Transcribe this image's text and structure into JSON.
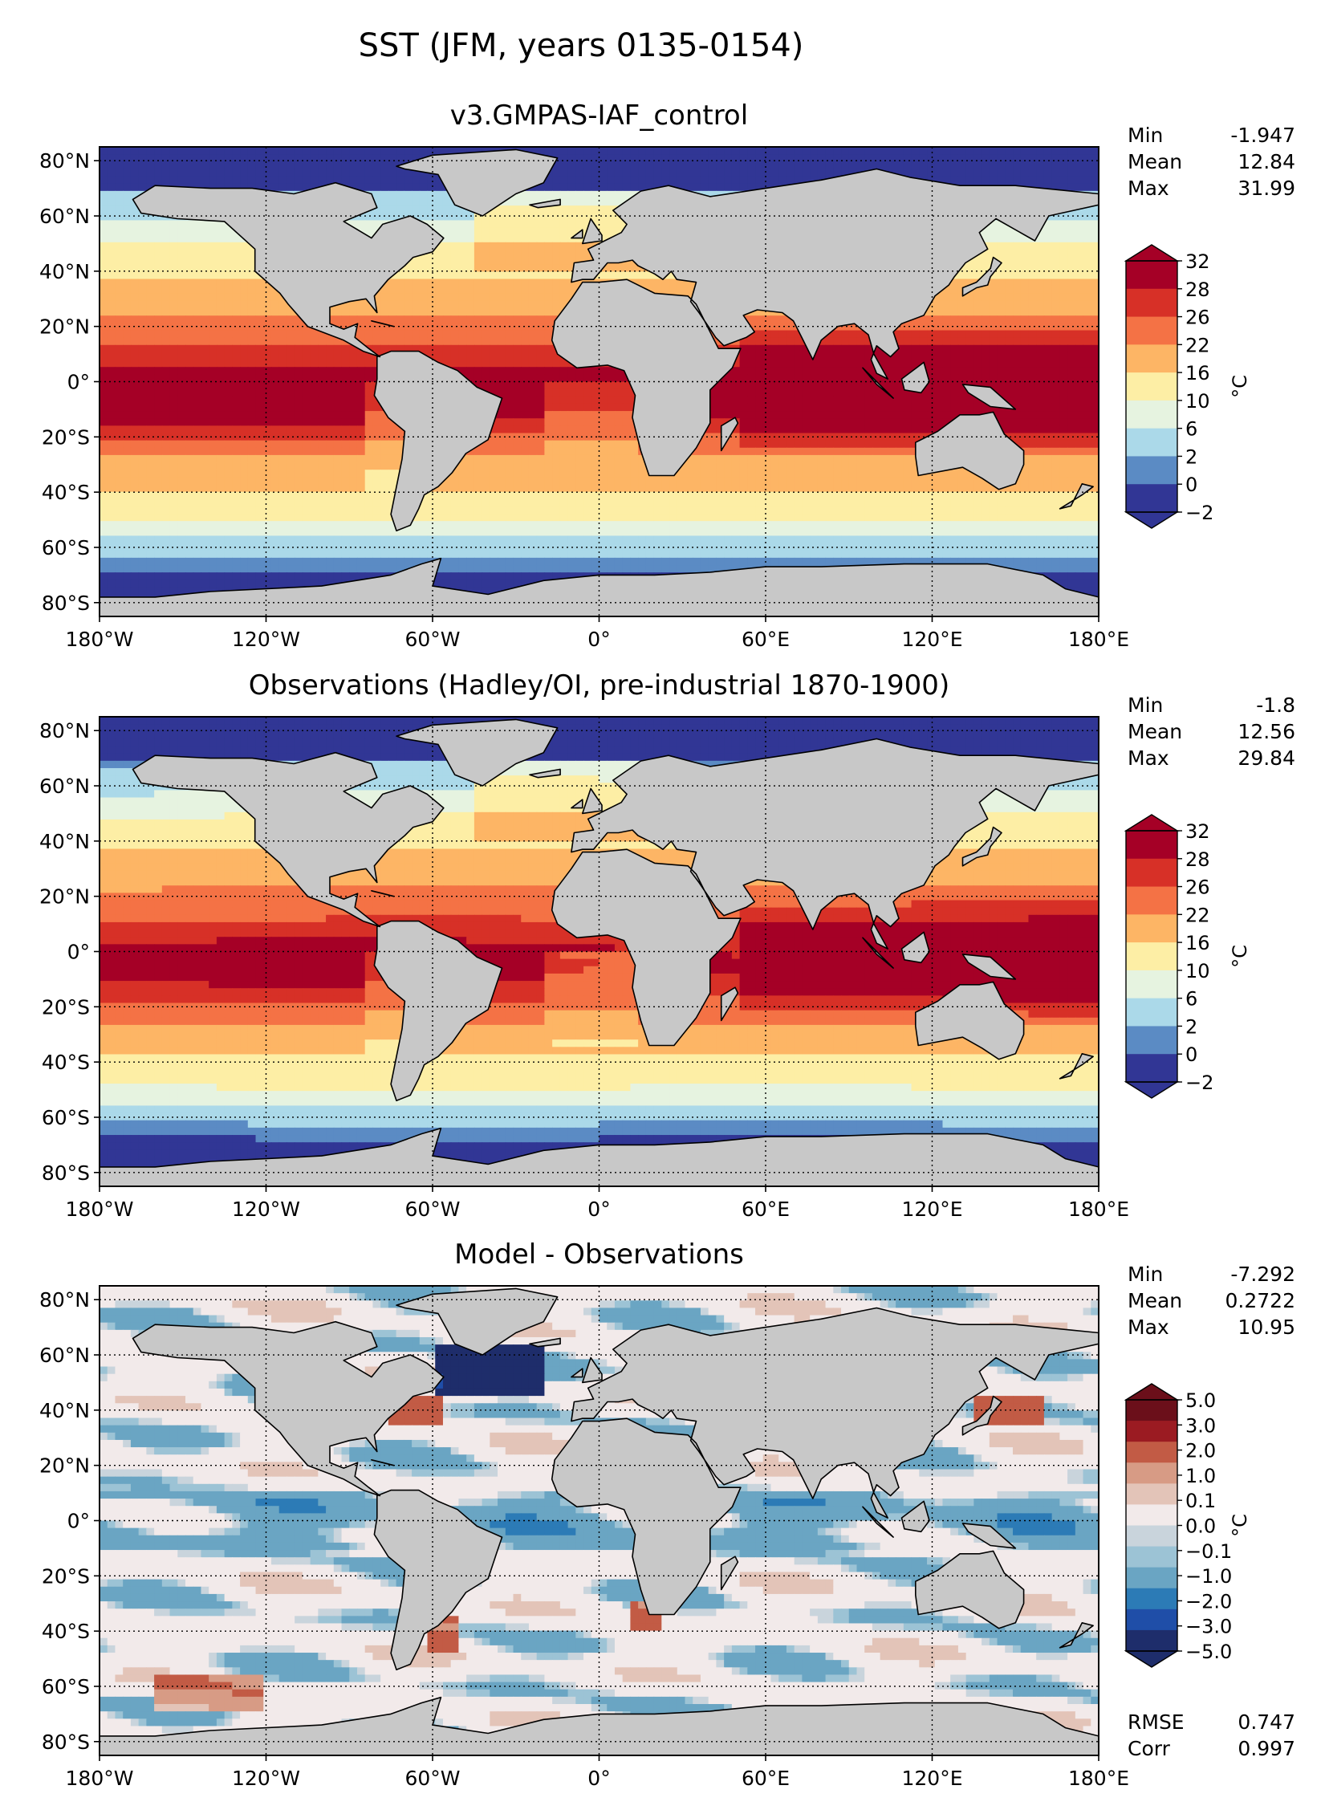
{
  "title": "SST (JFM, years 0135-0154)",
  "lon_ticks": [
    "180°W",
    "120°W",
    "60°W",
    "0°",
    "60°E",
    "120°E",
    "180°E"
  ],
  "lat_ticks": [
    "80°N",
    "60°N",
    "40°N",
    "20°N",
    "0°",
    "20°S",
    "40°S",
    "60°S",
    "80°S"
  ],
  "colors": {
    "land": "#c8c8c8",
    "abs_palette": [
      "#313695",
      "#5b8bc4",
      "#abd9e9",
      "#e6f3e0",
      "#fdeea5",
      "#fdb565",
      "#f47245",
      "#d73027",
      "#a50026"
    ],
    "diff_palette": [
      "#1e2d6b",
      "#1f4ea8",
      "#2c7bb6",
      "#6aa5c3",
      "#9cc3d5",
      "#c9d4dc",
      "#f2eaea",
      "#e3c4b8",
      "#d79b85",
      "#c25b45",
      "#9b1b22",
      "#6b0f1a"
    ]
  },
  "chart_data": [
    {
      "type": "heatmap",
      "title": "v3.GMPAS-IAF_control",
      "colorbar_unit": "°C",
      "colorbar_ticks": [
        "32",
        "28",
        "26",
        "22",
        "16",
        "10",
        "6",
        "2",
        "0",
        "−2"
      ],
      "stats": [
        {
          "label": "Min",
          "value": "-1.947"
        },
        {
          "label": "Mean",
          "value": "12.84"
        },
        {
          "label": "Max",
          "value": "31.99"
        }
      ],
      "field_kind": "model",
      "xlim": [
        -180,
        180
      ],
      "ylim": [
        -85,
        85
      ]
    },
    {
      "type": "heatmap",
      "title": "Observations (Hadley/OI, pre-industrial 1870-1900)",
      "colorbar_unit": "°C",
      "colorbar_ticks": [
        "32",
        "28",
        "26",
        "22",
        "16",
        "10",
        "6",
        "2",
        "0",
        "−2"
      ],
      "stats": [
        {
          "label": "Min",
          "value": "-1.8"
        },
        {
          "label": "Mean",
          "value": "12.56"
        },
        {
          "label": "Max",
          "value": "29.84"
        }
      ],
      "field_kind": "obs",
      "xlim": [
        -180,
        180
      ],
      "ylim": [
        -85,
        85
      ]
    },
    {
      "type": "heatmap",
      "title": "Model - Observations",
      "colorbar_unit": "°C",
      "colorbar_ticks": [
        "5.0",
        "3.0",
        "2.0",
        "1.0",
        "0.1",
        "0.0",
        "−0.1",
        "−1.0",
        "−2.0",
        "−3.0",
        "−5.0"
      ],
      "stats": [
        {
          "label": "Min",
          "value": "-7.292"
        },
        {
          "label": "Mean",
          "value": "0.2722"
        },
        {
          "label": "Max",
          "value": "10.95"
        }
      ],
      "extra_stats": [
        {
          "label": "RMSE",
          "value": "0.747"
        },
        {
          "label": "Corr",
          "value": "0.997"
        }
      ],
      "field_kind": "diff",
      "xlim": [
        -180,
        180
      ],
      "ylim": [
        -85,
        85
      ]
    }
  ]
}
